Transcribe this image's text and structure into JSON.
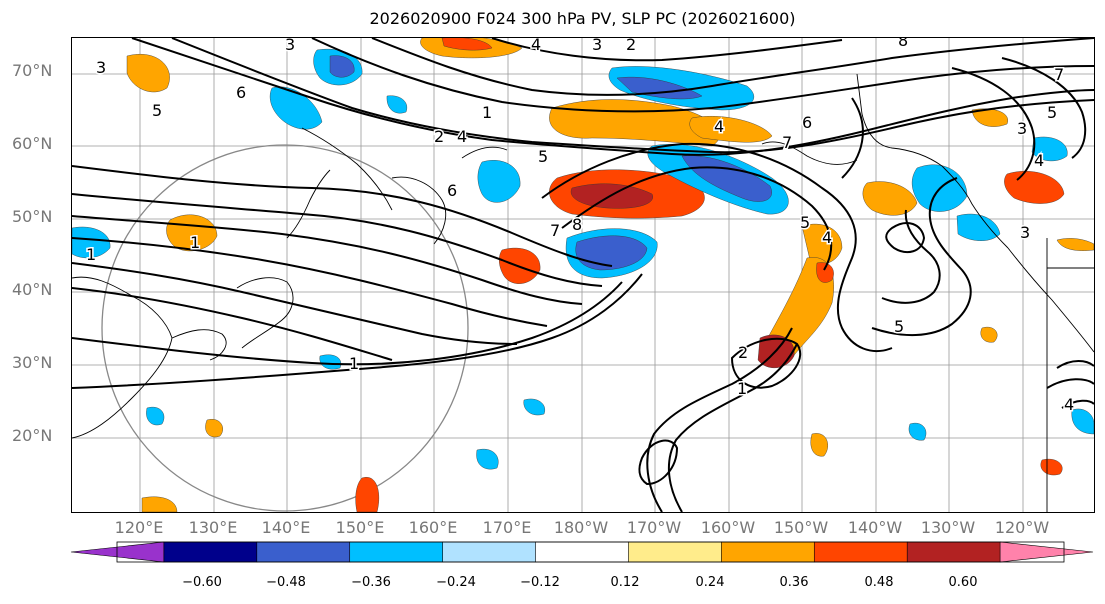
{
  "title": "2026020900 F024 300 hPa PV, SLP PC (2026021600)",
  "lat_labels": [
    "70°N",
    "60°N",
    "50°N",
    "40°N",
    "30°N",
    "20°N"
  ],
  "lon_labels": [
    "120°E",
    "130°E",
    "140°E",
    "150°E",
    "160°E",
    "170°E",
    "180°W",
    "170°W",
    "160°W",
    "150°W",
    "140°W",
    "130°W",
    "120°W"
  ],
  "contour_labels": [
    "3",
    "3",
    "4",
    "3",
    "2",
    "6",
    "8",
    "7",
    "5",
    "6",
    "1",
    "2",
    "4",
    "5",
    "6",
    "4",
    "7",
    "5",
    "3",
    "4",
    "1",
    "1",
    "8",
    "7",
    "5",
    "4",
    "5",
    "2",
    "1",
    "1",
    "4",
    "3"
  ],
  "colorbar": {
    "ticks": [
      "−0.60",
      "−0.48",
      "−0.36",
      "−0.24",
      "−0.12",
      "0.12",
      "0.24",
      "0.36",
      "0.48",
      "0.60"
    ],
    "colors": [
      "#9932cc",
      "#00008b",
      "#3a5fcd",
      "#00bfff",
      "#b0e2ff",
      "#ffffff",
      "#ffec8b",
      "#ffa500",
      "#ff4500",
      "#b22222",
      "#ff82ab"
    ]
  }
}
